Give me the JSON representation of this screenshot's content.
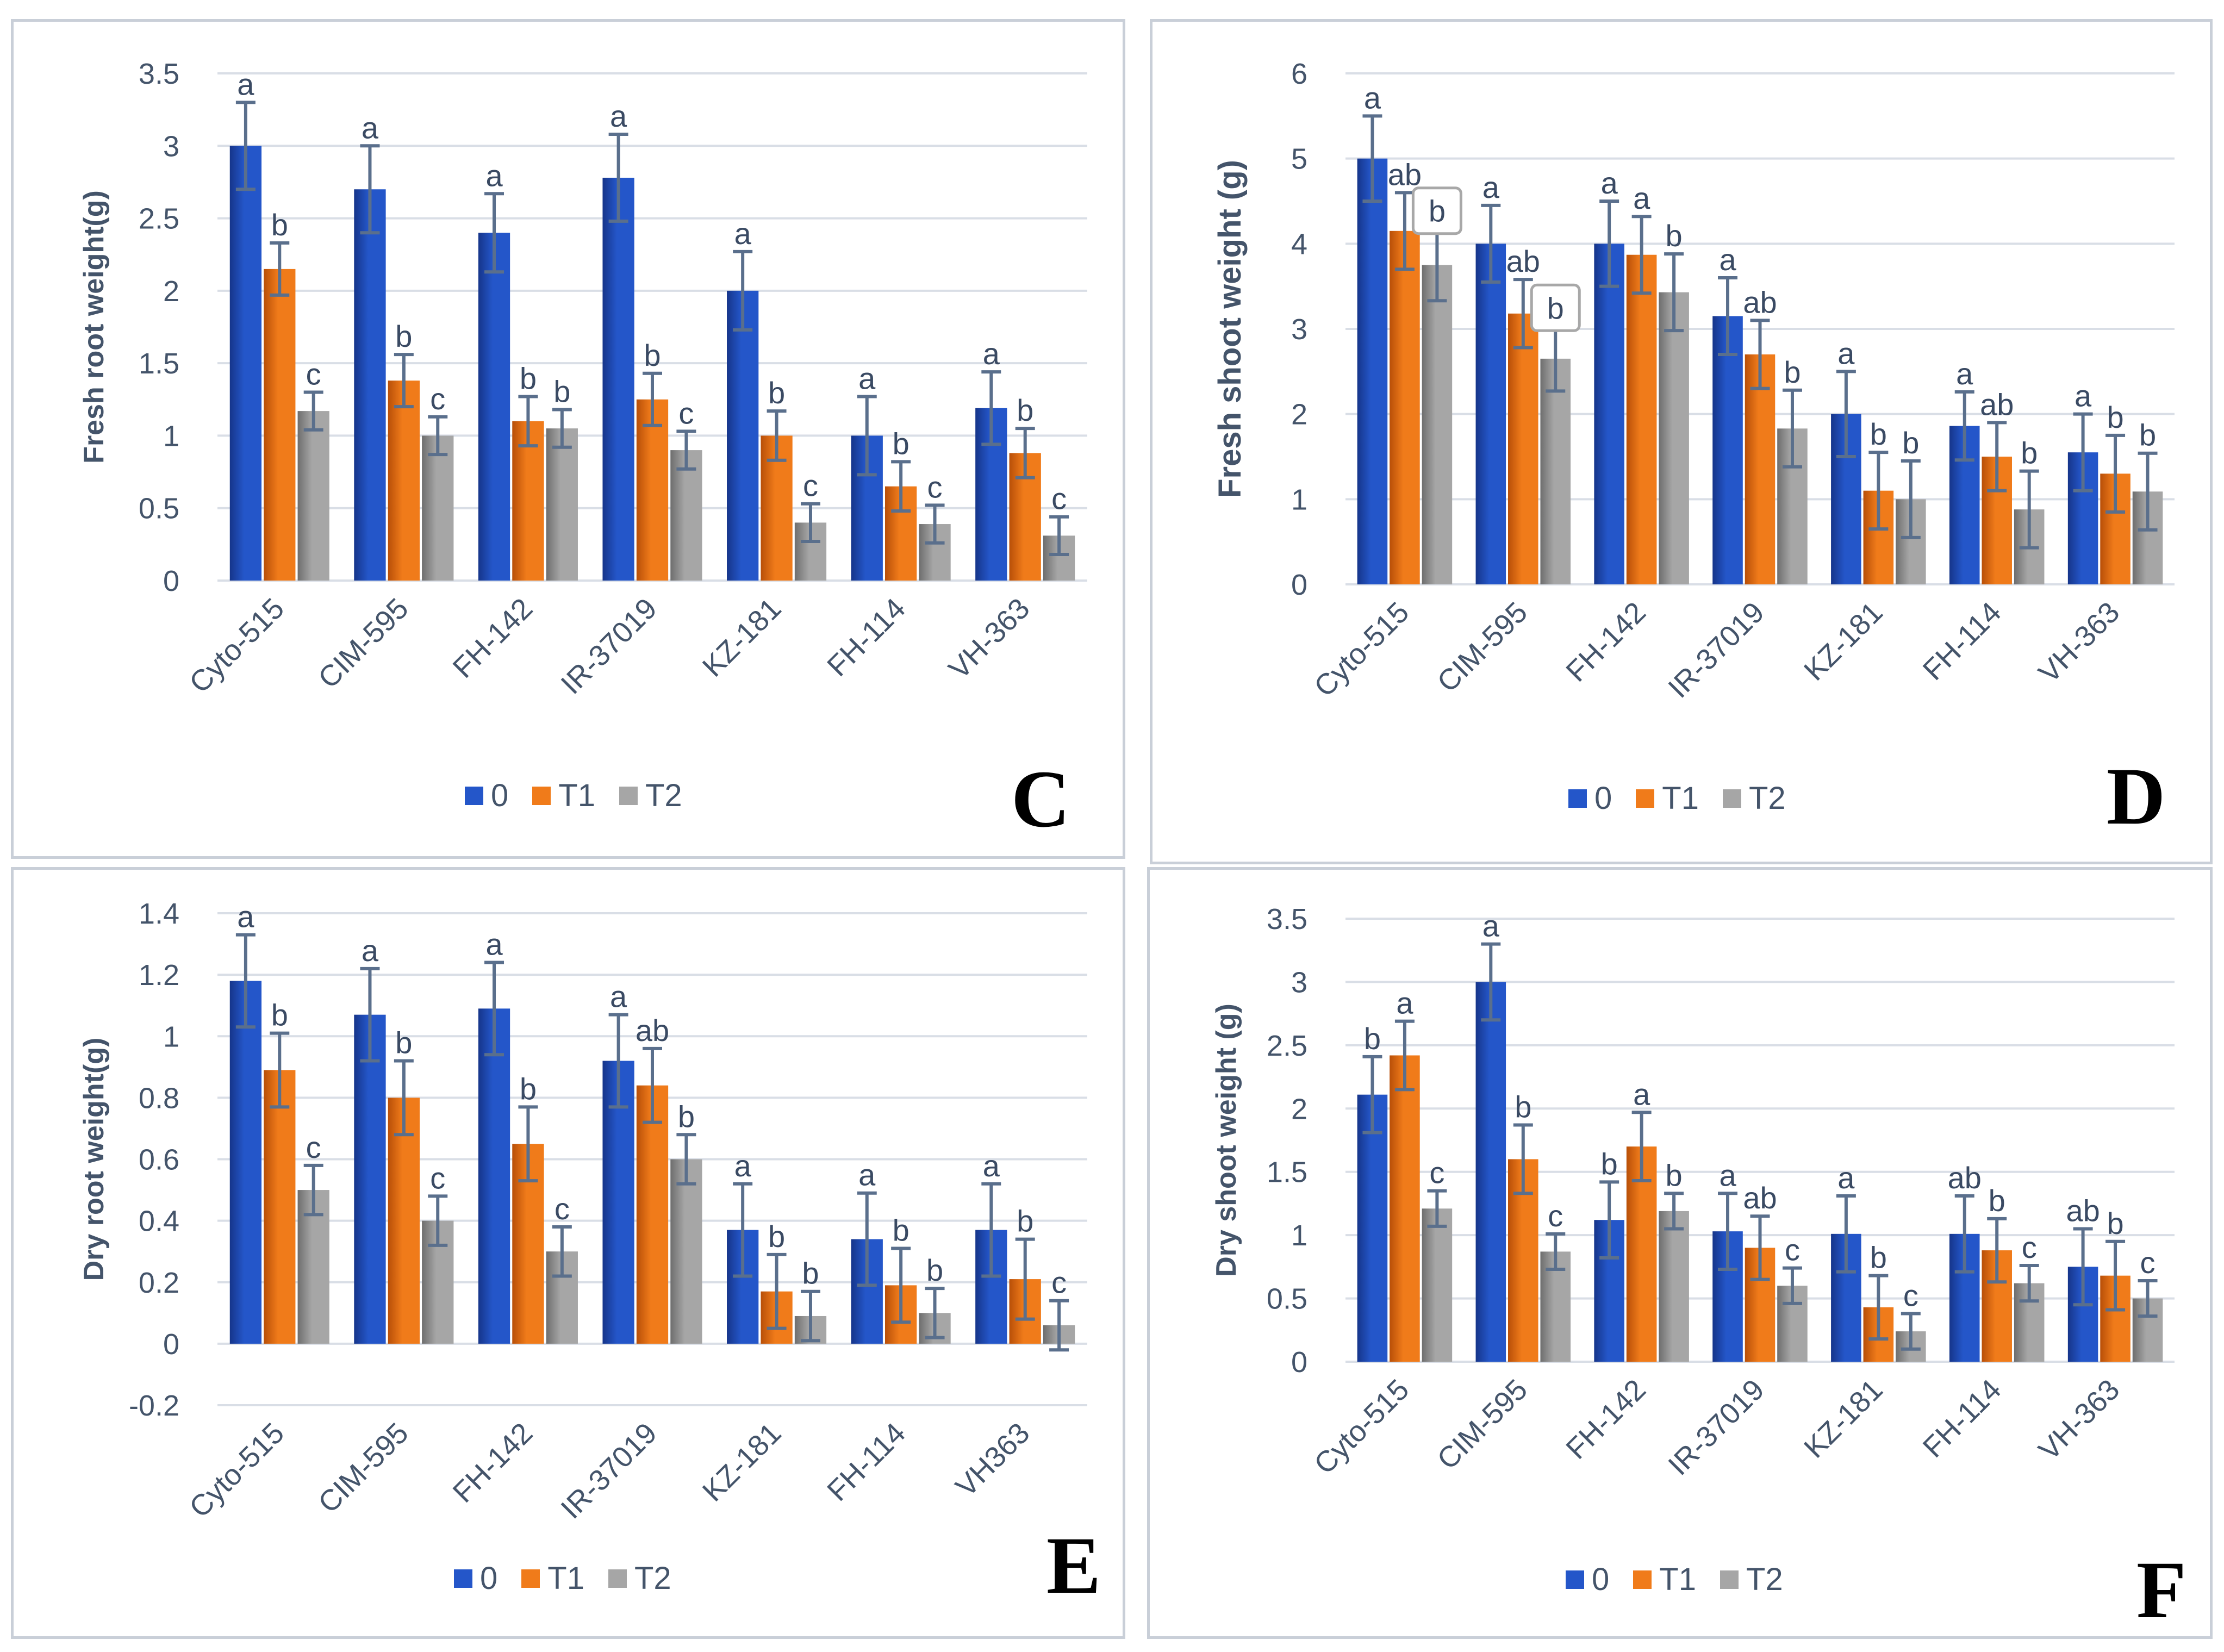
{
  "legend": [
    "0",
    "T1",
    "T2"
  ],
  "colors": {
    "s0": "#2456c9",
    "s0dark": "#16358a",
    "s1": "#f07b1a",
    "s1dark": "#b84f08",
    "s2": "#a6a6a6",
    "s2dark": "#6e6e6e",
    "axis_text": "#44546a",
    "letter_text": "#3a4a63",
    "grid": "#d9dee6",
    "error": "#5a6f8c"
  },
  "chart_data": [
    {
      "panel": "C",
      "type": "bar",
      "ylabel": "Fresh root weight(g)",
      "categories": [
        "Cyto-515",
        "CIM-595",
        "FH-142",
        "IR-37019",
        "KZ-181",
        "FH-114",
        "VH-363"
      ],
      "ylim": [
        0,
        3.5
      ],
      "ytick_step": 0.5,
      "ytick_labels": [
        "0",
        "0.5",
        "1",
        "1.5",
        "2",
        "2.5",
        "3",
        "3.5"
      ],
      "series": [
        {
          "name": "0",
          "values": [
            3.0,
            2.7,
            2.4,
            2.78,
            2.0,
            1.0,
            1.19
          ],
          "errors": [
            0.3,
            0.3,
            0.27,
            0.3,
            0.27,
            0.27,
            0.25
          ],
          "letters": [
            "a",
            "a",
            "a",
            "a",
            "a",
            "a",
            "a"
          ]
        },
        {
          "name": "T1",
          "values": [
            2.15,
            1.38,
            1.1,
            1.25,
            1.0,
            0.65,
            0.88
          ],
          "errors": [
            0.18,
            0.18,
            0.17,
            0.18,
            0.17,
            0.17,
            0.17
          ],
          "letters": [
            "b",
            "b",
            "b",
            "b",
            "b",
            "b",
            "b"
          ]
        },
        {
          "name": "T2",
          "values": [
            1.17,
            1.0,
            1.05,
            0.9,
            0.4,
            0.39,
            0.31
          ],
          "errors": [
            0.13,
            0.13,
            0.13,
            0.13,
            0.13,
            0.13,
            0.13
          ],
          "letters": [
            "c",
            "c",
            "b",
            "c",
            "c",
            "c",
            "c"
          ]
        }
      ]
    },
    {
      "panel": "D",
      "type": "bar",
      "ylabel": "Fresh shoot weight (g)",
      "categories": [
        "Cyto-515",
        "CIM-595",
        "FH-142",
        "IR-37019",
        "KZ-181",
        "FH-114",
        "VH-363"
      ],
      "ylim": [
        0,
        6
      ],
      "ytick_step": 1,
      "ytick_labels": [
        "0",
        "1",
        "2",
        "3",
        "4",
        "5",
        "6"
      ],
      "series": [
        {
          "name": "0",
          "values": [
            5.0,
            4.0,
            4.0,
            3.15,
            2.0,
            1.86,
            1.55
          ],
          "errors": [
            0.5,
            0.45,
            0.5,
            0.45,
            0.5,
            0.4,
            0.45
          ],
          "letters": [
            "a",
            "a",
            "a",
            "a",
            "a",
            "a",
            "a"
          ]
        },
        {
          "name": "T1",
          "values": [
            4.15,
            3.18,
            3.87,
            2.7,
            1.1,
            1.5,
            1.3
          ],
          "errors": [
            0.45,
            0.4,
            0.45,
            0.4,
            0.45,
            0.4,
            0.45
          ],
          "letters": [
            "ab",
            "ab",
            "a",
            "ab",
            "b",
            "ab",
            "b"
          ]
        },
        {
          "name": "T2",
          "values": [
            3.75,
            2.65,
            3.43,
            1.83,
            1.0,
            0.88,
            1.09
          ],
          "errors": [
            0.42,
            0.38,
            0.45,
            0.45,
            0.45,
            0.45,
            0.45
          ],
          "letters": [
            "b",
            "b",
            "b",
            "b",
            "b",
            "b",
            "b"
          ],
          "boxed": [
            true,
            true,
            false,
            false,
            false,
            false,
            false
          ]
        }
      ]
    },
    {
      "panel": "E",
      "type": "bar",
      "ylabel": "Dry root weight(g)",
      "categories": [
        "Cyto-515",
        "CIM-595",
        "FH-142",
        "IR-37019",
        "KZ-181",
        "FH-114",
        "VH363"
      ],
      "ylim": [
        -0.2,
        1.4
      ],
      "ytick_step": 0.2,
      "ytick_labels": [
        "-0.2",
        "0",
        "0.2",
        "0.4",
        "0.6",
        "0.8",
        "1",
        "1.2",
        "1.4"
      ],
      "series": [
        {
          "name": "0",
          "values": [
            1.18,
            1.07,
            1.09,
            0.92,
            0.37,
            0.34,
            0.37
          ],
          "errors": [
            0.15,
            0.15,
            0.15,
            0.15,
            0.15,
            0.15,
            0.15
          ],
          "letters": [
            "a",
            "a",
            "a",
            "a",
            "a",
            "a",
            "a"
          ]
        },
        {
          "name": "T1",
          "values": [
            0.89,
            0.8,
            0.65,
            0.84,
            0.17,
            0.19,
            0.21
          ],
          "errors": [
            0.12,
            0.12,
            0.12,
            0.12,
            0.12,
            0.12,
            0.13
          ],
          "letters": [
            "b",
            "b",
            "b",
            "ab",
            "b",
            "b",
            "b"
          ]
        },
        {
          "name": "T2",
          "values": [
            0.5,
            0.4,
            0.3,
            0.6,
            0.09,
            0.1,
            0.06
          ],
          "errors": [
            0.08,
            0.08,
            0.08,
            0.08,
            0.08,
            0.08,
            0.08
          ],
          "letters": [
            "c",
            "c",
            "c",
            "b",
            "b",
            "b",
            "c"
          ]
        }
      ]
    },
    {
      "panel": "F",
      "type": "bar",
      "ylabel": "Dry shoot weight (g)",
      "categories": [
        "Cyto-515",
        "CIM-595",
        "FH-142",
        "IR-37019",
        "KZ-181",
        "FH-114",
        "VH-363"
      ],
      "ylim": [
        0,
        3.5
      ],
      "ytick_step": 0.5,
      "ytick_labels": [
        "0",
        "0.5",
        "1",
        "1.5",
        "2",
        "2.5",
        "3",
        "3.5"
      ],
      "series": [
        {
          "name": "0",
          "values": [
            2.11,
            3.0,
            1.12,
            1.03,
            1.01,
            1.01,
            0.75
          ],
          "errors": [
            0.3,
            0.3,
            0.3,
            0.3,
            0.3,
            0.3,
            0.3
          ],
          "letters": [
            "b",
            "a",
            "b",
            "a",
            "a",
            "ab",
            "ab"
          ]
        },
        {
          "name": "T1",
          "values": [
            2.42,
            1.6,
            1.7,
            0.9,
            0.43,
            0.88,
            0.68
          ],
          "errors": [
            0.27,
            0.27,
            0.27,
            0.25,
            0.25,
            0.25,
            0.27
          ],
          "letters": [
            "a",
            "b",
            "a",
            "ab",
            "b",
            "b",
            "b"
          ]
        },
        {
          "name": "T2",
          "values": [
            1.21,
            0.87,
            1.19,
            0.6,
            0.24,
            0.62,
            0.5
          ],
          "errors": [
            0.14,
            0.14,
            0.14,
            0.14,
            0.14,
            0.14,
            0.14
          ],
          "letters": [
            "c",
            "c",
            "b",
            "c",
            "c",
            "c",
            "c"
          ]
        }
      ]
    }
  ]
}
